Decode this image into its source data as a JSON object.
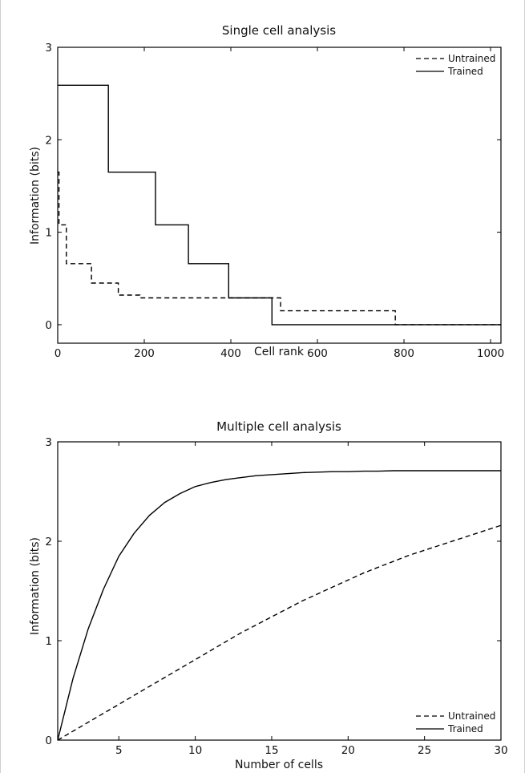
{
  "chart_data": [
    {
      "type": "line",
      "title": "Single cell analysis",
      "xlabel": "Cell rank",
      "ylabel": "Information (bits)",
      "xlim": [
        0,
        1024
      ],
      "ylim": [
        -0.2,
        3
      ],
      "xticks": [
        0,
        200,
        400,
        600,
        800,
        1000
      ],
      "yticks": [
        0,
        1,
        2,
        3
      ],
      "legend": "top-right",
      "series": [
        {
          "name": "Untrained",
          "style": "dashed",
          "step": true,
          "x": [
            0,
            3,
            3,
            20,
            20,
            78,
            78,
            140,
            140,
            190,
            190,
            400,
            400,
            515,
            515,
            780,
            780,
            1024
          ],
          "y": [
            1.65,
            1.65,
            1.08,
            1.08,
            0.66,
            0.66,
            0.45,
            0.45,
            0.32,
            0.32,
            0.29,
            0.29,
            0.29,
            0.29,
            0.15,
            0.15,
            0.0,
            0.0
          ]
        },
        {
          "name": "Trained",
          "style": "solid",
          "step": true,
          "x": [
            0,
            117,
            117,
            226,
            226,
            302,
            302,
            395,
            395,
            495,
            495,
            1024
          ],
          "y": [
            2.59,
            2.59,
            1.65,
            1.65,
            1.08,
            1.08,
            0.66,
            0.66,
            0.29,
            0.29,
            0.0,
            0.0
          ]
        }
      ]
    },
    {
      "type": "line",
      "title": "Multiple cell analysis",
      "xlabel": "Number of cells",
      "ylabel": "Information (bits)",
      "xlim": [
        1,
        30
      ],
      "ylim": [
        0,
        3
      ],
      "xticks": [
        5,
        10,
        15,
        20,
        25,
        30
      ],
      "yticks": [
        0,
        1,
        2,
        3
      ],
      "legend": "bottom-right",
      "series": [
        {
          "name": "Untrained",
          "style": "dashed",
          "x": [
            1,
            2,
            3,
            4,
            5,
            6,
            7,
            8,
            9,
            10,
            11,
            12,
            13,
            14,
            15,
            16,
            17,
            18,
            19,
            20,
            21,
            22,
            23,
            24,
            25,
            26,
            27,
            28,
            29,
            30
          ],
          "y": [
            0.0,
            0.09,
            0.18,
            0.27,
            0.36,
            0.45,
            0.54,
            0.63,
            0.72,
            0.81,
            0.9,
            0.99,
            1.08,
            1.16,
            1.24,
            1.32,
            1.4,
            1.47,
            1.54,
            1.61,
            1.68,
            1.74,
            1.8,
            1.86,
            1.91,
            1.96,
            2.01,
            2.06,
            2.11,
            2.16
          ]
        },
        {
          "name": "Trained",
          "style": "solid",
          "x": [
            1,
            2,
            3,
            4,
            5,
            6,
            7,
            8,
            9,
            10,
            11,
            12,
            13,
            14,
            15,
            16,
            17,
            18,
            19,
            20,
            21,
            22,
            23,
            24,
            25,
            26,
            27,
            28,
            29,
            30
          ],
          "y": [
            0.0,
            0.62,
            1.12,
            1.52,
            1.85,
            2.08,
            2.26,
            2.39,
            2.48,
            2.55,
            2.59,
            2.62,
            2.64,
            2.66,
            2.67,
            2.68,
            2.69,
            2.695,
            2.7,
            2.7,
            2.705,
            2.705,
            2.71,
            2.71,
            2.71,
            2.71,
            2.71,
            2.71,
            2.71,
            2.71
          ]
        }
      ]
    }
  ]
}
